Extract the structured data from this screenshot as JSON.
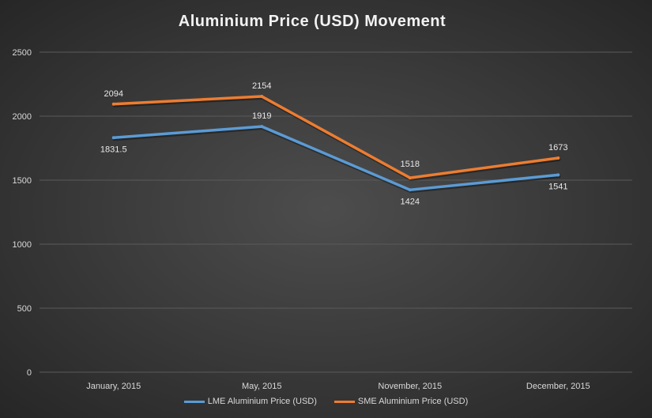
{
  "chart_data": {
    "type": "line",
    "title": "Aluminium Price (USD) Movement",
    "categories": [
      "January, 2015",
      "May, 2015",
      "November, 2015",
      "December, 2015"
    ],
    "series": [
      {
        "name": "LME Aluminium Price (USD)",
        "values": [
          1831.5,
          1919,
          1424,
          1541
        ],
        "labels": [
          "1831.5",
          "1919",
          "1424",
          "1541"
        ],
        "color": "#5b9bd5"
      },
      {
        "name": "SME Aluminium Price (USD)",
        "values": [
          2094,
          2154,
          1518,
          1673
        ],
        "labels": [
          "2094",
          "2154",
          "1518",
          "1673"
        ],
        "color": "#ed7d31"
      }
    ],
    "yticks": [
      "0",
      "500",
      "1000",
      "1500",
      "2000",
      "2500"
    ],
    "ylim": [
      0,
      2500
    ],
    "grid": true,
    "legend": "bottom"
  }
}
